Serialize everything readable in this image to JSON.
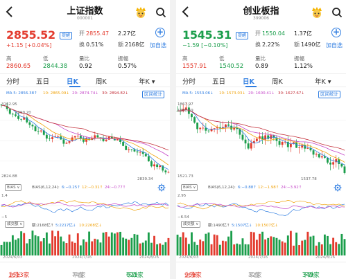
{
  "colors": {
    "up": "#e33b2e",
    "down": "#1b9e4b",
    "accent": "#2f7de1",
    "ma5": "#2f7de1",
    "ma10": "#f0a20a",
    "ma20": "#c444c8",
    "ma30": "#c4303a"
  },
  "icons": {
    "back": "chevron-left-icon",
    "mascot": "mascot-icon",
    "search": "search-icon",
    "add": "plus-circle-icon",
    "settings": "gear-icon"
  },
  "tabs": [
    "分时",
    "五日",
    "日K",
    "周K",
    "年K ▾"
  ],
  "ma_prefix": "MA",
  "badge": "提醒",
  "add_label": "加自选",
  "stats_label": "区间统计",
  "bias_select": "BIAS ∨",
  "vol_select": "成交额 ∨",
  "bias_prefix": "BIAS(6,12,24):",
  "foot_labels": {
    "up": "上涨",
    "flat": "平盘",
    "down": "下跌"
  },
  "labels": {
    "open": "开",
    "vol": "额",
    "hi": "高",
    "low": "低",
    "turnover": "换",
    "amount": "额",
    "ratio": "量比",
    "amp": "振幅",
    "amplitude": "振幅"
  },
  "left": {
    "title": "上证指数",
    "code": "000001",
    "price": "2855.52",
    "change": "+1.15",
    "change_pct": "[+0.04%]",
    "open": "2855.47",
    "vol": "2.27亿",
    "turnover": "0.51%",
    "amount": "2168亿",
    "high": "2860.65",
    "low": "2844.38",
    "ratio": "0.92",
    "amplitude": "0.57%",
    "ma": {
      "ma5": "5: 2856.38↑",
      "ma10": "10: 2865.09↓",
      "ma20": "20: 2874.74↓",
      "ma30": "30: 2894.82↓"
    },
    "chart_top": "3162.95",
    "chart_hi": "3099.20",
    "chart_bot": "2824.88",
    "chart_low": "2839.34",
    "bias_vals": {
      "b6": "6:−0.25↑",
      "b12": "12:−0.31↑",
      "b24": "24:−0.77↑"
    },
    "bias_hi": "1.4",
    "bias_lo": "−5",
    "vol_vals": {
      "label": "额:2168亿↑",
      "v5": "5:2217亿↓",
      "v10": "10:2268亿↓"
    },
    "dates": [
      "2024/6/03",
      "2024/7/16",
      "2024/8/26"
    ],
    "foot": {
      "up": "1613家",
      "flat": "74家",
      "down": "621家"
    },
    "chart_data": {
      "type": "candlestick",
      "ylim": [
        2824.88,
        3162.95
      ],
      "last_close": 2855.52
    }
  },
  "right": {
    "title": "创业板指",
    "code": "399006",
    "price": "1545.31",
    "change": "−1.59",
    "change_pct": "[−0.10%]",
    "open": "1550.04",
    "vol": "1.37亿",
    "turnover": "2.22%",
    "amount": "1490亿",
    "high": "1557.91",
    "low": "1540.52",
    "ratio": "0.89",
    "amplitude": "1.12%",
    "ma": {
      "ma5": "5: 1553.06↓",
      "ma10": "10: 1573.03↓",
      "ma20": "20: 1600.41↓",
      "ma30": "30: 1627.67↓"
    },
    "chart_top": "1867.97",
    "chart_hi": "1858.69",
    "chart_bot": "1521.73",
    "chart_low": "1537.78",
    "bias_vals": {
      "b6": "6:−0.88↑",
      "b12": "12:−1.98↑",
      "b24": "24:−3.92↑"
    },
    "bias_hi": "2.95",
    "bias_lo": "−6.54",
    "vol_vals": {
      "label": "额:1490亿↑",
      "v5": "5:1507亿↓",
      "v10": "10:1507亿↓"
    },
    "dates": [
      "2024/6/03",
      "2024/7/16",
      "2024/8/26"
    ],
    "foot": {
      "up": "969家",
      "flat": "32家",
      "down": "349家"
    },
    "chart_data": {
      "type": "candlestick",
      "ylim": [
        1521.73,
        1867.97
      ],
      "last_close": 1545.31
    }
  }
}
